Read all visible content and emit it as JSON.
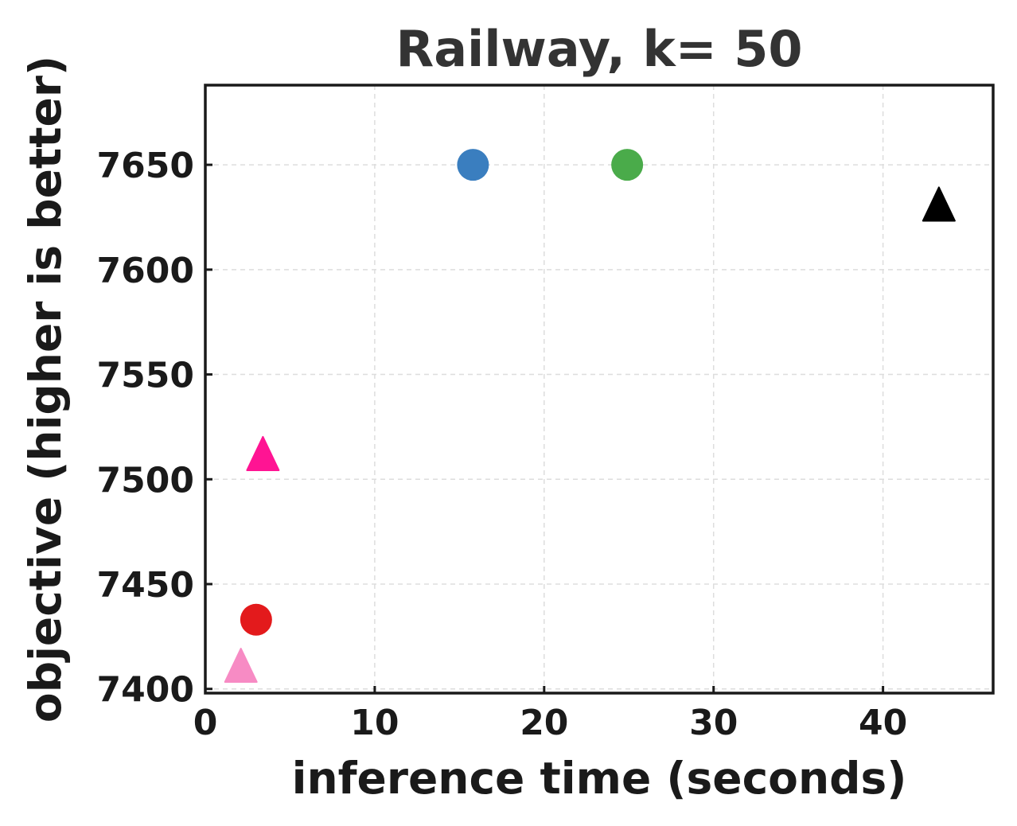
{
  "chart_data": {
    "type": "scatter",
    "title": "Railway, k= 50",
    "xlabel": "inference time (seconds)",
    "ylabel": "objective (higher is better)",
    "xlim": [
      0,
      46.5
    ],
    "ylim": [
      7398,
      7688
    ],
    "xticks": [
      0,
      10,
      20,
      30,
      40
    ],
    "yticks": [
      7400,
      7450,
      7500,
      7550,
      7600,
      7650
    ],
    "grid": true,
    "points": [
      {
        "x": 15.8,
        "y": 7650,
        "marker": "circle",
        "color": "#3a7ebf"
      },
      {
        "x": 24.9,
        "y": 7650,
        "marker": "circle",
        "color": "#4aab4a"
      },
      {
        "x": 43.3,
        "y": 7630,
        "marker": "triangle",
        "color": "#000000"
      },
      {
        "x": 3.4,
        "y": 7511,
        "marker": "triangle",
        "color": "#ff1493"
      },
      {
        "x": 3.0,
        "y": 7433,
        "marker": "circle",
        "color": "#e31a1c"
      },
      {
        "x": 2.1,
        "y": 7410,
        "marker": "triangle",
        "color": "#f78bc4"
      }
    ]
  }
}
